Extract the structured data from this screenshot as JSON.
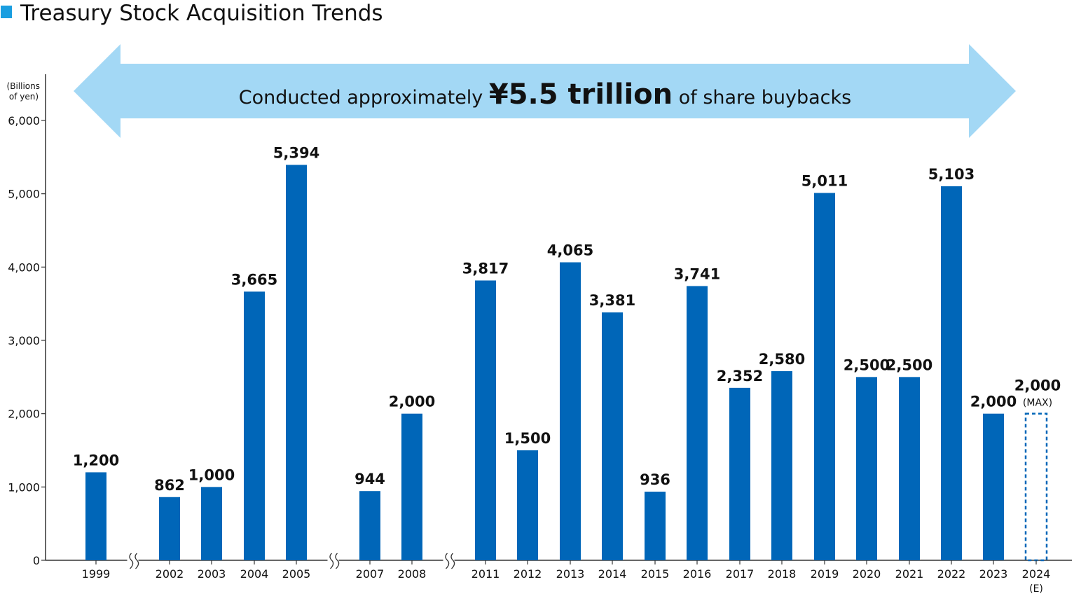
{
  "colors": {
    "bar": "#0066b8",
    "accent_square": "#1a9ee0",
    "banner": "#a3d8f5",
    "axis": "#333333",
    "text": "#111111"
  },
  "title": "Treasury Stock Acquisition Trends",
  "banner": {
    "prefix": "Conducted approximately ",
    "highlight": "¥5.5 trillion",
    "suffix": " of share buybacks"
  },
  "chart_data": {
    "type": "bar",
    "title": "Treasury Stock Acquisition Trends",
    "ylabel_line1": "(Billions",
    "ylabel_line2": "of yen)",
    "ylim": [
      0,
      6000
    ],
    "yticks": [
      0,
      1000,
      2000,
      3000,
      4000,
      5000,
      6000
    ],
    "ytick_labels": [
      "0",
      "1,000",
      "2,000",
      "3,000",
      "4,000",
      "5,000",
      "6,000"
    ],
    "grid": false,
    "axis_breaks_after": [
      "1999",
      "2005",
      "2008"
    ],
    "categories": [
      "1999",
      "2002",
      "2003",
      "2004",
      "2005",
      "2007",
      "2008",
      "2011",
      "2012",
      "2013",
      "2014",
      "2015",
      "2016",
      "2017",
      "2018",
      "2019",
      "2020",
      "2021",
      "2022",
      "2023",
      "2024"
    ],
    "values": [
      1200,
      862,
      1000,
      3665,
      5394,
      944,
      2000,
      3817,
      1500,
      4065,
      3381,
      936,
      3741,
      2352,
      2580,
      5011,
      2500,
      2500,
      5103,
      2000,
      2000
    ],
    "value_labels": [
      "1,200",
      "862",
      "1,000",
      "3,665",
      "5,394",
      "944",
      "2,000",
      "3,817",
      "1,500",
      "4,065",
      "3,381",
      "936",
      "3,741",
      "2,352",
      "2,580",
      "5,011",
      "2,500",
      "2,500",
      "5,103",
      "2,000",
      "2,000"
    ],
    "estimated": {
      "category": "2024",
      "category_note": "(E)",
      "value_note": "(MAX)",
      "style": "dashed-outline"
    }
  }
}
